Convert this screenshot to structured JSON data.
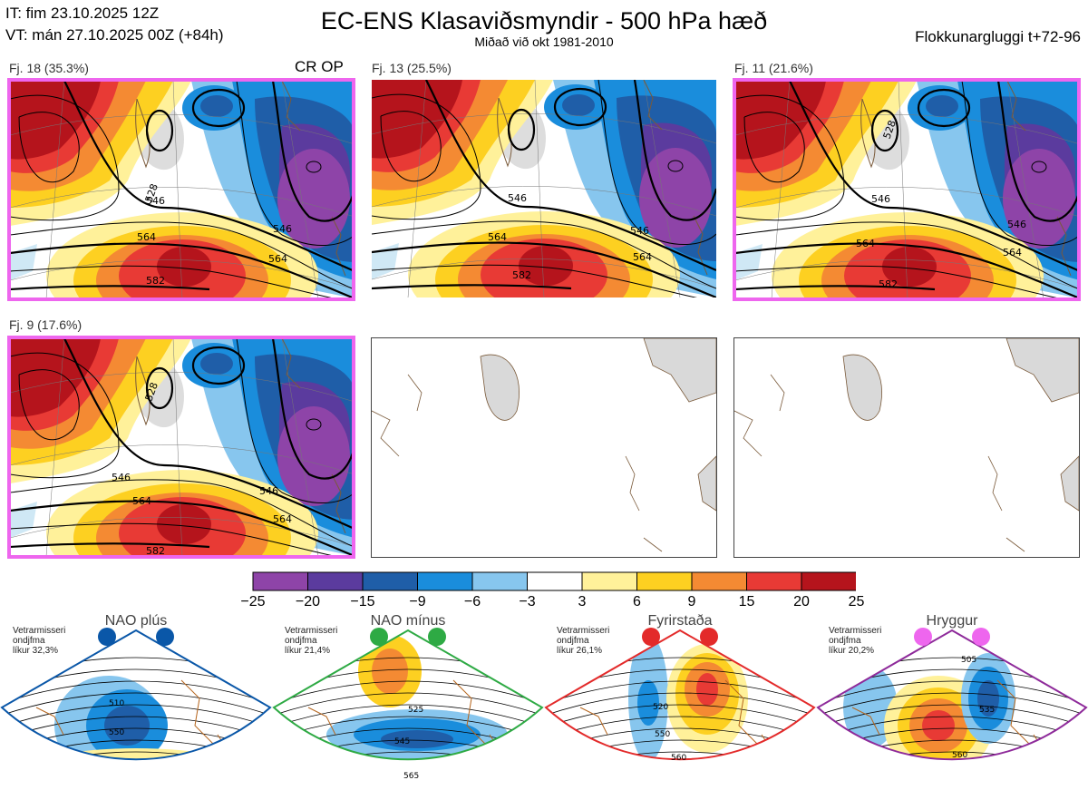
{
  "header": {
    "initial_time": "IT: fim 23.10.2025 12Z",
    "valid_time": "VT: mán 27.10.2025 00Z  (+84h)",
    "title": "EC-ENS Klasaviðsmyndir - 500 hPa hæð",
    "subtitle": "Miðað við okt 1981-2010",
    "cluster_window": "Flokkunargluggi t+72-96"
  },
  "clusters": [
    {
      "label": "Fj. 18 (35.3%)",
      "tag": "CR OP",
      "contours": [
        "528",
        "546",
        "546",
        "564",
        "564",
        "582"
      ]
    },
    {
      "label": "Fj. 13 (25.5%)",
      "tag": "",
      "contours": [
        "546",
        "546",
        "564",
        "564",
        "582"
      ]
    },
    {
      "label": "Fj. 11 (21.6%)",
      "tag": "",
      "contours": [
        "528",
        "546",
        "546",
        "564",
        "564",
        "582"
      ]
    },
    {
      "label": "Fj. 9 (17.6%)",
      "tag": "",
      "contours": [
        "528",
        "546",
        "546",
        "564",
        "564",
        "582"
      ]
    }
  ],
  "colorbar": {
    "ticks": [
      "−25",
      "−20",
      "−15",
      "−9",
      "−6",
      "−3",
      "3",
      "6",
      "9",
      "15",
      "20",
      "25"
    ],
    "colors": [
      "#8e44a8",
      "#5b3b9e",
      "#1f5ea8",
      "#1a8ddc",
      "#87c6ee",
      "#ffffff",
      "#fff19a",
      "#fdd021",
      "#f48a33",
      "#e83a35",
      "#b5141c"
    ]
  },
  "regimes": [
    {
      "name": "NAO plús",
      "info": [
        "Vetrarmisseri",
        "ondjfma",
        "líkur 32,3%"
      ],
      "color": "#0a57a8",
      "contours": [
        "510",
        "550"
      ]
    },
    {
      "name": "NAO mínus",
      "info": [
        "Vetrarmisseri",
        "ondjfma",
        "líkur 21,4%"
      ],
      "color": "#2eaa44",
      "contours": [
        "525",
        "545",
        "565"
      ]
    },
    {
      "name": "Fyrirstaða",
      "info": [
        "Vetrarmisseri",
        "ondjfma",
        "líkur 26,1%"
      ],
      "color": "#e32a2a",
      "contours": [
        "520",
        "550",
        "560"
      ]
    },
    {
      "name": "Hryggur",
      "info": [
        "Vetrarmisseri",
        "ondjfma",
        "líkur 20,2%"
      ],
      "color": "#8e2a9a",
      "contours": [
        "505",
        "535",
        "560"
      ]
    }
  ]
}
